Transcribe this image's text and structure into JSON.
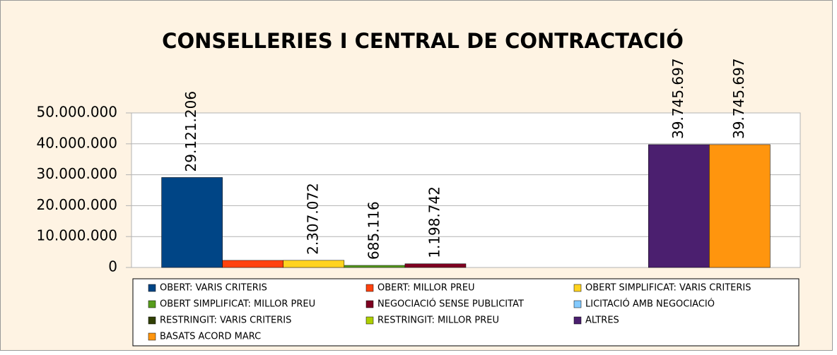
{
  "chart_data": {
    "type": "bar",
    "title": "CONSELLERIES I CENTRAL DE CONTRACTACIÓ",
    "categories": [
      null
    ],
    "series": [
      {
        "name": "OBERT: VARIS CRITERIS",
        "color": "#004586",
        "values": [
          29121206
        ],
        "value_labels": [
          "29.121.206"
        ]
      },
      {
        "name": "OBERT: MILLOR PREU",
        "color": "#ff420e",
        "values": [
          2300000
        ],
        "value_labels": [
          null
        ]
      },
      {
        "name": "OBERT SIMPLIFICAT: VARIS CRITERIS",
        "color": "#ffd320",
        "values": [
          2307072
        ],
        "value_labels": [
          "2.307.072"
        ]
      },
      {
        "name": "OBERT SIMPLIFICAT: MILLOR PREU",
        "color": "#579d1c",
        "values": [
          685116
        ],
        "value_labels": [
          "685.116"
        ]
      },
      {
        "name": "NEGOCIACIÓ SENSE PUBLICITAT",
        "color": "#7e0021",
        "values": [
          1198742
        ],
        "value_labels": [
          "1.198.742"
        ]
      },
      {
        "name": "LICITACIÓ AMB NEGOCIACIÓ",
        "color": "#83caff",
        "values": [
          0
        ],
        "value_labels": [
          null
        ]
      },
      {
        "name": "RESTRINGIT: VARIS CRITERIS",
        "color": "#314004",
        "values": [
          0
        ],
        "value_labels": [
          null
        ]
      },
      {
        "name": "RESTRINGIT: MILLOR PREU",
        "color": "#aecf00",
        "values": [
          0
        ],
        "value_labels": [
          null
        ]
      },
      {
        "name": "ALTRES",
        "color": "#4b1f6f",
        "values": [
          39745697
        ],
        "value_labels": [
          "39.745.697"
        ]
      },
      {
        "name": "BASATS ACORD MARC",
        "color": "#ff950e",
        "values": [
          39745697
        ],
        "value_labels": [
          "39.745.697"
        ]
      }
    ],
    "ylim": [
      0,
      50000000
    ],
    "yticks": [
      0,
      {
        "value": 10000000,
        "label": "10.000.000"
      },
      {
        "value": 20000000,
        "label": "20.000.000"
      },
      {
        "value": 30000000,
        "label": "30.000.000"
      },
      {
        "value": 40000000,
        "label": "40.000.000"
      },
      {
        "value": 50000000,
        "label": "50.000.000"
      }
    ],
    "grid": true,
    "legend": "bottom"
  }
}
